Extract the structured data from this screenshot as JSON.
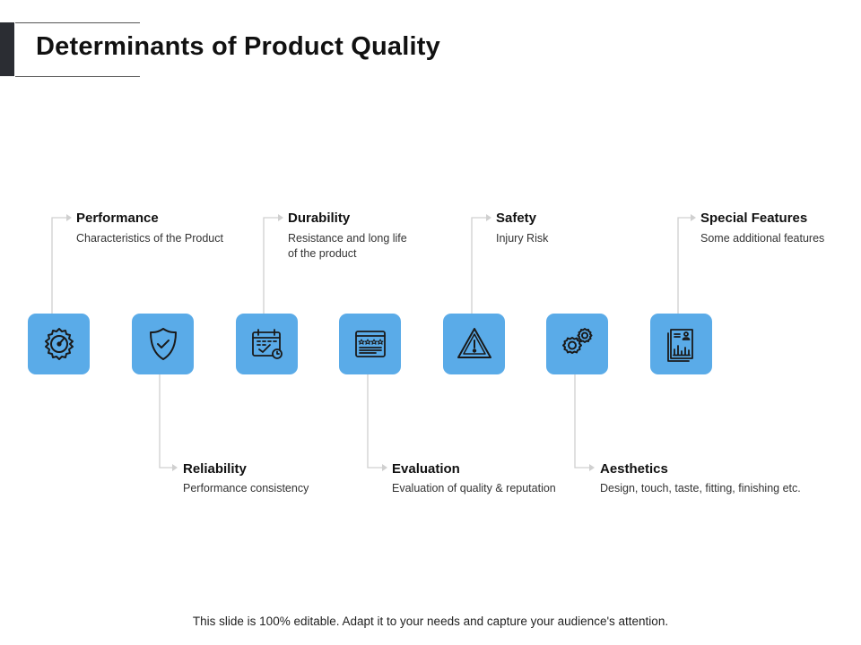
{
  "title": "Determinants of Product Quality",
  "items": [
    {
      "label": "Performance",
      "desc": "Characteristics of the Product",
      "icon": "speedometer-gear-icon"
    },
    {
      "label": "Reliability",
      "desc": "Performance consistency",
      "icon": "shield-check-icon"
    },
    {
      "label": "Durability",
      "desc": "Resistance and long life of the product",
      "icon": "calendar-check-icon"
    },
    {
      "label": "Evaluation",
      "desc": "Evaluation of quality & reputation",
      "icon": "rating-browser-icon"
    },
    {
      "label": "Safety",
      "desc": "Injury Risk",
      "icon": "warning-triangle-icon"
    },
    {
      "label": "Aesthetics",
      "desc": "Design, touch, taste, fitting, finishing etc.",
      "icon": "gears-icon"
    },
    {
      "label": "Special Features",
      "desc": "Some additional features",
      "icon": "report-document-icon"
    }
  ],
  "footer": "This slide is 100% editable. Adapt it to your needs and capture your audience's attention.",
  "colors": {
    "tile": "#5aabe8",
    "icon_stroke": "#1a1a1a",
    "connector": "#d0d0d0"
  }
}
